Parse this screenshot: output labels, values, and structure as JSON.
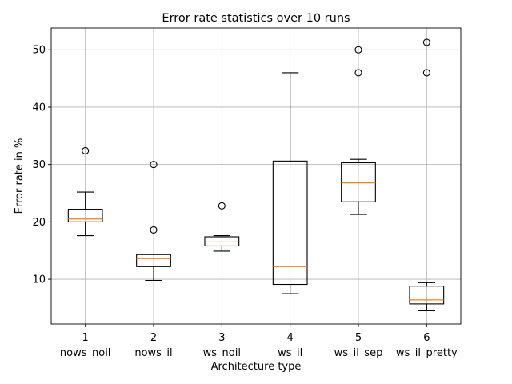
{
  "chart_data": {
    "type": "box",
    "title": "Error rate statistics over 10 runs",
    "xlabel": "Architecture type",
    "ylabel": "Error rate in %",
    "ylim": [
      2.2,
      53.8
    ],
    "yticks": [
      10,
      20,
      30,
      40,
      50
    ],
    "grid": true,
    "positions": [
      1,
      2,
      3,
      4,
      5,
      6
    ],
    "tick_labels": [
      "1",
      "2",
      "3",
      "4",
      "5",
      "6"
    ],
    "categories": [
      "nows_noil",
      "nows_il",
      "ws_noil",
      "ws_il",
      "ws_il_sep",
      "ws_il_pretty"
    ],
    "boxes": [
      {
        "whisker_low": 17.6,
        "q1": 20.0,
        "median": 20.5,
        "q3": 22.2,
        "whisker_high": 25.2,
        "outliers": [
          32.4
        ]
      },
      {
        "whisker_low": 9.8,
        "q1": 12.2,
        "median": 13.6,
        "q3": 14.3,
        "whisker_high": 14.4,
        "outliers": [
          18.6,
          30.0
        ]
      },
      {
        "whisker_low": 14.9,
        "q1": 15.8,
        "median": 16.5,
        "q3": 17.4,
        "whisker_high": 17.6,
        "outliers": [
          22.8
        ]
      },
      {
        "whisker_low": 7.5,
        "q1": 9.1,
        "median": 12.2,
        "q3": 30.6,
        "whisker_high": 46.0,
        "outliers": []
      },
      {
        "whisker_low": 21.3,
        "q1": 23.5,
        "median": 26.8,
        "q3": 30.3,
        "whisker_high": 30.9,
        "outliers": [
          46.0,
          50.0
        ]
      },
      {
        "whisker_low": 4.5,
        "q1": 5.7,
        "median": 6.4,
        "q3": 8.8,
        "whisker_high": 9.4,
        "outliers": [
          46.0,
          51.3
        ]
      }
    ],
    "colors": {
      "box": "#000000",
      "median": "#ff7f0e",
      "grid": "#b0b0b0"
    }
  }
}
